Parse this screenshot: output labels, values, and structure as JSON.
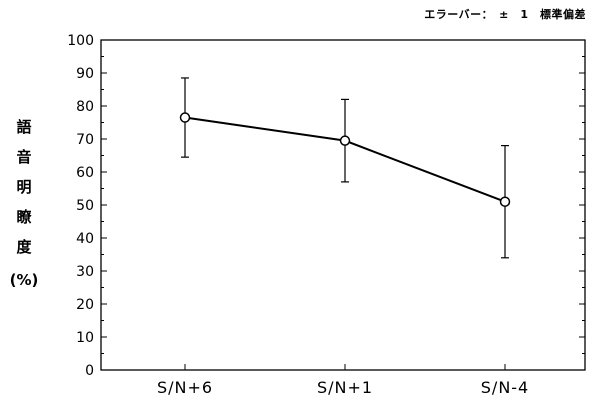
{
  "note": "エラーバー：　±　1　標準偏差",
  "ylabel_chars": [
    "語",
    "音",
    "明",
    "瞭",
    "度"
  ],
  "unit": "(%)",
  "chart_data": {
    "type": "line",
    "title": "",
    "xlabel": "",
    "ylabel": "語音明瞭度 (%)",
    "categories": [
      "S/N+6",
      "S/N+1",
      "S/N-4"
    ],
    "series": [
      {
        "values": [
          76.5,
          69.5,
          51
        ],
        "error": [
          12,
          12.5,
          17
        ]
      }
    ],
    "ylim": [
      0,
      100
    ],
    "yticks": [
      0,
      10,
      20,
      30,
      40,
      50,
      60,
      70,
      80,
      90,
      100
    ],
    "grid": false,
    "colors": {
      "line": "#000000",
      "marker_fill": "#ffffff"
    }
  }
}
